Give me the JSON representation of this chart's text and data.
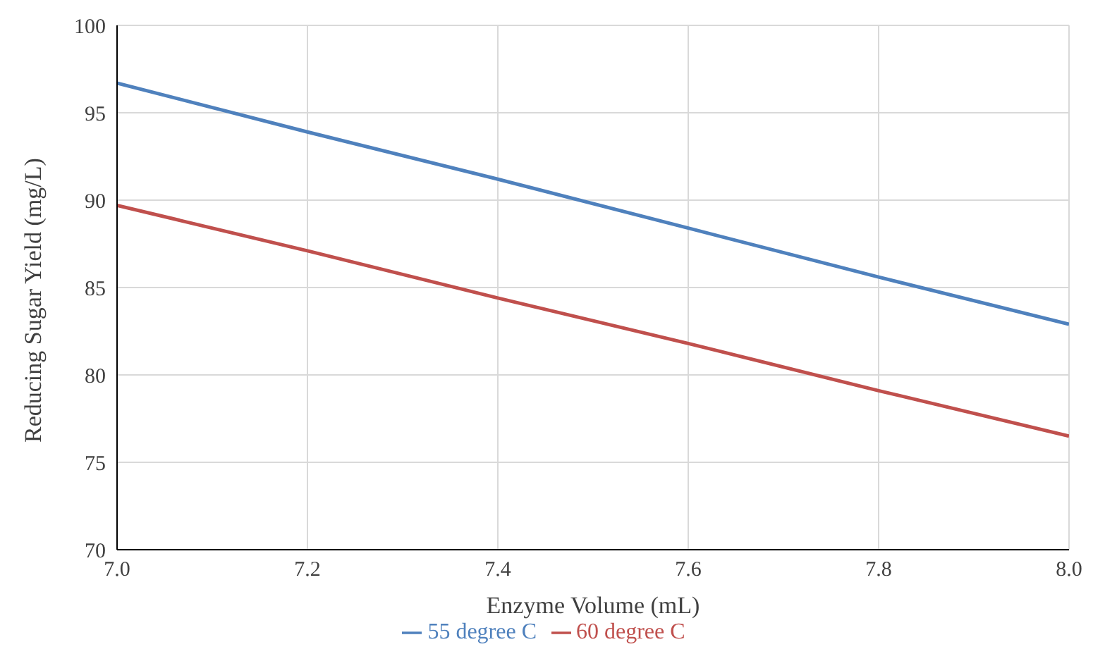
{
  "chart_data": {
    "type": "line",
    "xlabel": "Enzyme Volume (mL)",
    "ylabel": "Reducing Sugar Yield (mg/L)",
    "x": [
      7.0,
      7.2,
      7.4,
      7.6,
      7.8,
      8.0
    ],
    "series": [
      {
        "name": "55 degree C",
        "color": "#4f81bd",
        "values": [
          96.7,
          93.9,
          91.2,
          88.4,
          85.6,
          82.9
        ]
      },
      {
        "name": "60 degree C",
        "color": "#c0504d",
        "values": [
          89.7,
          87.1,
          84.4,
          81.8,
          79.1,
          76.5
        ]
      }
    ],
    "xlim": [
      7.0,
      8.0
    ],
    "xticks": [
      {
        "value": 7.0,
        "label": "7.0"
      },
      7.2,
      7.4,
      7.6,
      7.8,
      {
        "value": 8.0,
        "label": "8.0"
      }
    ],
    "ylim": [
      70,
      100
    ],
    "yticks": [
      70,
      75,
      80,
      85,
      90,
      95,
      100
    ],
    "grid": true,
    "legend": "bottom",
    "marker": "none",
    "line_style": "solid"
  }
}
